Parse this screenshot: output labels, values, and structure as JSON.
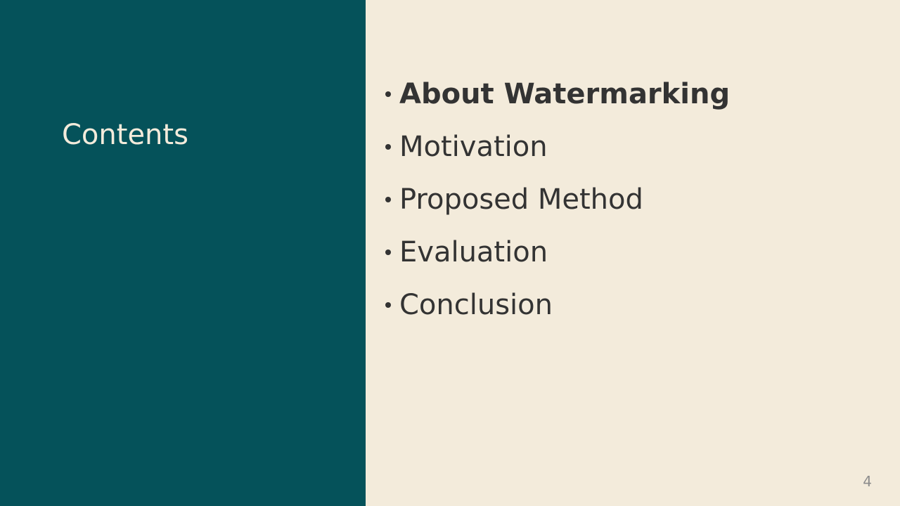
{
  "slide": {
    "title": "Contents",
    "page_number": "4",
    "items": [
      {
        "label": "About Watermarking"
      },
      {
        "label": "Motivation"
      },
      {
        "label": "Proposed Method"
      },
      {
        "label": "Evaluation"
      },
      {
        "label": "Conclusion"
      }
    ],
    "colors": {
      "left_panel": "#05525a",
      "right_panel": "#f3ebdb",
      "title": "#f3ebdb",
      "text": "#333333"
    }
  }
}
